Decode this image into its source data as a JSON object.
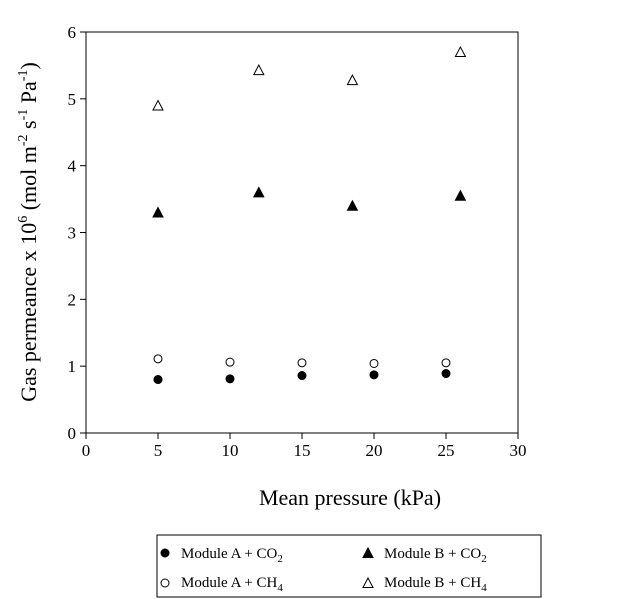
{
  "chart_data": {
    "type": "scatter",
    "title": "",
    "xlabel": "Mean pressure (kPa)",
    "ylabel": {
      "prefix": "Gas permeance x 10",
      "exp": "6",
      "unit_open": " (mol m",
      "m_exp": "-2",
      "s": " s",
      "s_exp": "-1",
      "pa": " Pa",
      "pa_exp": "-1",
      "close": ")"
    },
    "xlim": [
      0,
      30
    ],
    "ylim": [
      0,
      6
    ],
    "xticks": [
      "0",
      "5",
      "10",
      "15",
      "20",
      "25",
      "30"
    ],
    "yticks": [
      "0",
      "1",
      "2",
      "3",
      "4",
      "5",
      "6"
    ],
    "grid": false,
    "legend_position": "bottom",
    "series": [
      {
        "label": {
          "text": "Module A + CO",
          "sub": "2"
        },
        "marker": "circle-filled",
        "points": [
          [
            5,
            0.8
          ],
          [
            10,
            0.81
          ],
          [
            15,
            0.86
          ],
          [
            20,
            0.87
          ],
          [
            25,
            0.89
          ]
        ]
      },
      {
        "label": {
          "text": "Module A + CH",
          "sub": "4"
        },
        "marker": "circle-open",
        "points": [
          [
            5,
            1.11
          ],
          [
            10,
            1.06
          ],
          [
            15,
            1.05
          ],
          [
            20,
            1.04
          ],
          [
            25,
            1.05
          ]
        ]
      },
      {
        "label": {
          "text": "Module B + CO",
          "sub": "2"
        },
        "marker": "triangle-filled",
        "points": [
          [
            5,
            3.3
          ],
          [
            12,
            3.6
          ],
          [
            18.5,
            3.4
          ],
          [
            26,
            3.55
          ]
        ]
      },
      {
        "label": {
          "text": "Module B + CH",
          "sub": "4"
        },
        "marker": "triangle-open",
        "points": [
          [
            5,
            4.9
          ],
          [
            12,
            5.43
          ],
          [
            18.5,
            5.28
          ],
          [
            26,
            5.7
          ]
        ]
      }
    ]
  }
}
